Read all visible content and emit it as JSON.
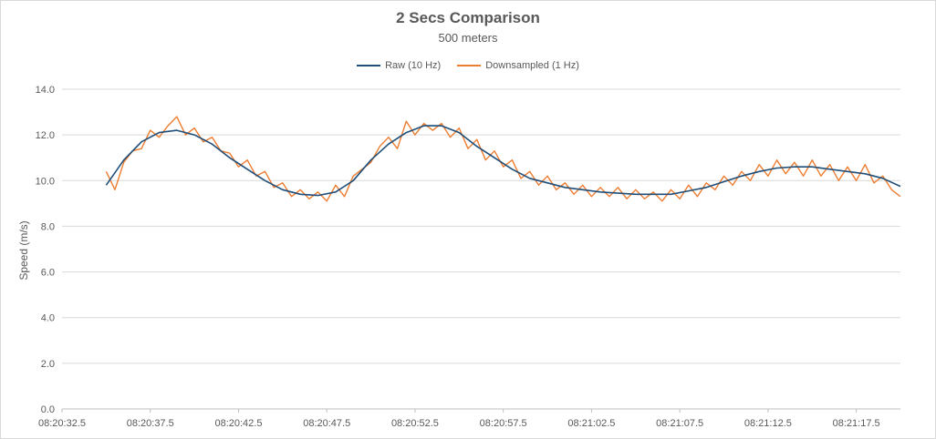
{
  "chart_data": {
    "type": "line",
    "title": "2 Secs Comparison",
    "subtitle": "500 meters",
    "xlabel": "",
    "ylabel": "Speed (m/s)",
    "ylim": [
      0,
      14
    ],
    "yticks": [
      "0.0",
      "2.0",
      "4.0",
      "6.0",
      "8.0",
      "10.0",
      "12.0",
      "14.0"
    ],
    "xticks": [
      "08:20:32.5",
      "08:20:37.5",
      "08:20:42.5",
      "08:20:47.5",
      "08:20:52.5",
      "08:20:57.5",
      "08:21:02.5",
      "08:21:07.5",
      "08:21:12.5",
      "08:21:17.5"
    ],
    "grid": true,
    "legend_position": "top",
    "x_range": [
      "08:20:32.5",
      "08:21:20.0"
    ],
    "series": [
      {
        "name": "Raw (10 Hz)",
        "color": "#1f4e79",
        "points": [
          [
            "08:20:35.0",
            9.8
          ],
          [
            "08:20:36.0",
            10.9
          ],
          [
            "08:20:37.0",
            11.7
          ],
          [
            "08:20:38.0",
            12.1
          ],
          [
            "08:20:39.0",
            12.2
          ],
          [
            "08:20:40.0",
            12.0
          ],
          [
            "08:20:41.0",
            11.6
          ],
          [
            "08:20:42.0",
            11.0
          ],
          [
            "08:20:43.0",
            10.5
          ],
          [
            "08:20:44.0",
            10.0
          ],
          [
            "08:20:45.0",
            9.6
          ],
          [
            "08:20:46.0",
            9.4
          ],
          [
            "08:20:47.0",
            9.35
          ],
          [
            "08:20:48.0",
            9.5
          ],
          [
            "08:20:49.0",
            10.0
          ],
          [
            "08:20:50.0",
            10.9
          ],
          [
            "08:20:51.0",
            11.6
          ],
          [
            "08:20:52.0",
            12.1
          ],
          [
            "08:20:53.0",
            12.4
          ],
          [
            "08:20:54.0",
            12.4
          ],
          [
            "08:20:55.0",
            12.1
          ],
          [
            "08:20:56.0",
            11.5
          ],
          [
            "08:20:57.0",
            11.0
          ],
          [
            "08:20:58.0",
            10.5
          ],
          [
            "08:20:59.0",
            10.1
          ],
          [
            "08:21:00.0",
            9.9
          ],
          [
            "08:21:01.0",
            9.7
          ],
          [
            "08:21:02.0",
            9.6
          ],
          [
            "08:21:03.0",
            9.5
          ],
          [
            "08:21:04.0",
            9.45
          ],
          [
            "08:21:05.0",
            9.4
          ],
          [
            "08:21:06.0",
            9.4
          ],
          [
            "08:21:07.0",
            9.4
          ],
          [
            "08:21:08.0",
            9.55
          ],
          [
            "08:21:09.0",
            9.7
          ],
          [
            "08:21:10.0",
            9.95
          ],
          [
            "08:21:11.0",
            10.2
          ],
          [
            "08:21:12.0",
            10.4
          ],
          [
            "08:21:13.0",
            10.55
          ],
          [
            "08:21:14.0",
            10.6
          ],
          [
            "08:21:15.0",
            10.6
          ],
          [
            "08:21:16.0",
            10.5
          ],
          [
            "08:21:17.0",
            10.4
          ],
          [
            "08:21:18.0",
            10.3
          ],
          [
            "08:21:19.0",
            10.1
          ],
          [
            "08:21:20.0",
            9.75
          ]
        ]
      },
      {
        "name": "Downsampled (1 Hz)",
        "color": "#ed7d31",
        "points": [
          [
            "08:20:35.0",
            10.4
          ],
          [
            "08:20:35.5",
            9.6
          ],
          [
            "08:20:36.0",
            10.8
          ],
          [
            "08:20:36.5",
            11.3
          ],
          [
            "08:20:37.0",
            11.4
          ],
          [
            "08:20:37.5",
            12.2
          ],
          [
            "08:20:38.0",
            11.9
          ],
          [
            "08:20:38.5",
            12.4
          ],
          [
            "08:20:39.0",
            12.8
          ],
          [
            "08:20:39.5",
            12.0
          ],
          [
            "08:20:40.0",
            12.3
          ],
          [
            "08:20:40.5",
            11.7
          ],
          [
            "08:20:41.0",
            11.9
          ],
          [
            "08:20:41.5",
            11.3
          ],
          [
            "08:20:42.0",
            11.2
          ],
          [
            "08:20:42.5",
            10.6
          ],
          [
            "08:20:43.0",
            10.9
          ],
          [
            "08:20:43.5",
            10.2
          ],
          [
            "08:20:44.0",
            10.4
          ],
          [
            "08:20:44.5",
            9.7
          ],
          [
            "08:20:45.0",
            9.9
          ],
          [
            "08:20:45.5",
            9.3
          ],
          [
            "08:20:46.0",
            9.6
          ],
          [
            "08:20:46.5",
            9.2
          ],
          [
            "08:20:47.0",
            9.5
          ],
          [
            "08:20:47.5",
            9.1
          ],
          [
            "08:20:48.0",
            9.8
          ],
          [
            "08:20:48.5",
            9.3
          ],
          [
            "08:20:49.0",
            10.2
          ],
          [
            "08:20:49.5",
            10.5
          ],
          [
            "08:20:50.0",
            10.8
          ],
          [
            "08:20:50.5",
            11.5
          ],
          [
            "08:20:51.0",
            11.9
          ],
          [
            "08:20:51.5",
            11.4
          ],
          [
            "08:20:52.0",
            12.6
          ],
          [
            "08:20:52.5",
            12.0
          ],
          [
            "08:20:53.0",
            12.5
          ],
          [
            "08:20:53.5",
            12.2
          ],
          [
            "08:20:54.0",
            12.5
          ],
          [
            "08:20:54.5",
            11.9
          ],
          [
            "08:20:55.0",
            12.3
          ],
          [
            "08:20:55.5",
            11.4
          ],
          [
            "08:20:56.0",
            11.8
          ],
          [
            "08:20:56.5",
            10.9
          ],
          [
            "08:20:57.0",
            11.3
          ],
          [
            "08:20:57.5",
            10.6
          ],
          [
            "08:20:58.0",
            10.9
          ],
          [
            "08:20:58.5",
            10.1
          ],
          [
            "08:20:59.0",
            10.4
          ],
          [
            "08:20:59.5",
            9.8
          ],
          [
            "08:21:00.0",
            10.2
          ],
          [
            "08:21:00.5",
            9.6
          ],
          [
            "08:21:01.0",
            9.9
          ],
          [
            "08:21:01.5",
            9.4
          ],
          [
            "08:21:02.0",
            9.8
          ],
          [
            "08:21:02.5",
            9.3
          ],
          [
            "08:21:03.0",
            9.7
          ],
          [
            "08:21:03.5",
            9.3
          ],
          [
            "08:21:04.0",
            9.7
          ],
          [
            "08:21:04.5",
            9.2
          ],
          [
            "08:21:05.0",
            9.6
          ],
          [
            "08:21:05.5",
            9.2
          ],
          [
            "08:21:06.0",
            9.5
          ],
          [
            "08:21:06.5",
            9.1
          ],
          [
            "08:21:07.0",
            9.6
          ],
          [
            "08:21:07.5",
            9.2
          ],
          [
            "08:21:08.0",
            9.8
          ],
          [
            "08:21:08.5",
            9.3
          ],
          [
            "08:21:09.0",
            9.9
          ],
          [
            "08:21:09.5",
            9.6
          ],
          [
            "08:21:10.0",
            10.2
          ],
          [
            "08:21:10.5",
            9.8
          ],
          [
            "08:21:11.0",
            10.4
          ],
          [
            "08:21:11.5",
            10.0
          ],
          [
            "08:21:12.0",
            10.7
          ],
          [
            "08:21:12.5",
            10.2
          ],
          [
            "08:21:13.0",
            10.9
          ],
          [
            "08:21:13.5",
            10.3
          ],
          [
            "08:21:14.0",
            10.8
          ],
          [
            "08:21:14.5",
            10.2
          ],
          [
            "08:21:15.0",
            10.9
          ],
          [
            "08:21:15.5",
            10.2
          ],
          [
            "08:21:16.0",
            10.7
          ],
          [
            "08:21:16.5",
            10.0
          ],
          [
            "08:21:17.0",
            10.6
          ],
          [
            "08:21:17.5",
            10.0
          ],
          [
            "08:21:18.0",
            10.7
          ],
          [
            "08:21:18.5",
            9.9
          ],
          [
            "08:21:19.0",
            10.2
          ],
          [
            "08:21:19.5",
            9.6
          ],
          [
            "08:21:20.0",
            9.3
          ]
        ]
      }
    ]
  }
}
